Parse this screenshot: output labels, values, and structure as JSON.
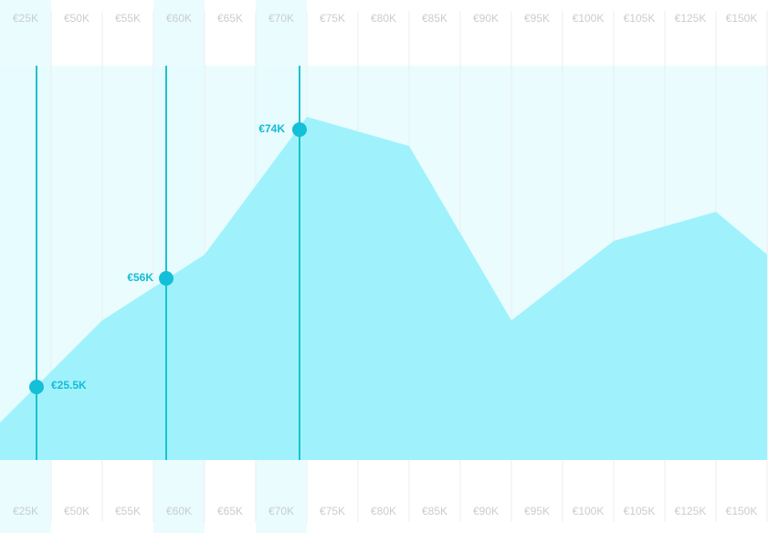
{
  "columns": [
    {
      "label": "€25K",
      "highlighted": true
    },
    {
      "label": "€50K",
      "highlighted": false
    },
    {
      "label": "€55K",
      "highlighted": false
    },
    {
      "label": "€60K",
      "highlighted": true
    },
    {
      "label": "€65K",
      "highlighted": false
    },
    {
      "label": "€70K",
      "highlighted": true
    },
    {
      "label": "€75K",
      "highlighted": false
    },
    {
      "label": "€80K",
      "highlighted": false
    },
    {
      "label": "€85K",
      "highlighted": false
    },
    {
      "label": "€90K",
      "highlighted": false
    },
    {
      "label": "€95K",
      "highlighted": false
    },
    {
      "label": "€100K",
      "highlighted": false
    },
    {
      "label": "€105K",
      "highlighted": false
    },
    {
      "label": "€125K",
      "highlighted": false
    },
    {
      "label": "€150K",
      "highlighted": false
    }
  ],
  "markers": [
    {
      "label": "€25.5K"
    },
    {
      "label": "€56K"
    },
    {
      "label": "€74K"
    }
  ]
}
